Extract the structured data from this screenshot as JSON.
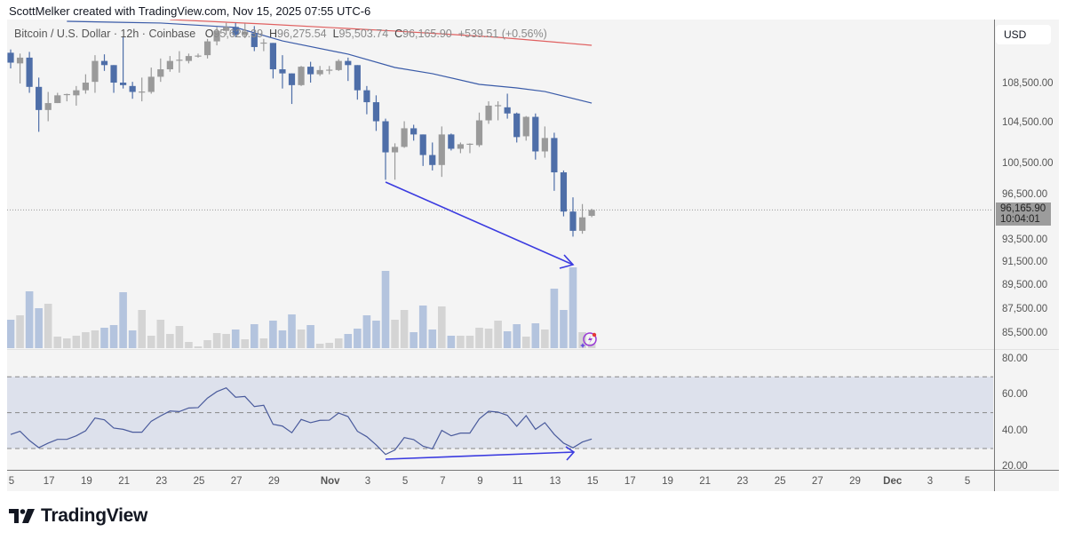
{
  "attribution": "ScottMelker created with TradingView.com, Nov 15, 2025 07:55 UTC-6",
  "legend": {
    "symbol": "Bitcoin / U.S. Dollar · 12h · Coinbase",
    "open_label": "O",
    "open": "95,626.39",
    "high_label": "H",
    "high": "96,275.54",
    "low_label": "L",
    "low": "95,503.74",
    "close_label": "C",
    "close": "96,165.90",
    "change": "+539.51 (+0.56%)"
  },
  "currency": "USD",
  "last_price": {
    "price": "96,165.90",
    "countdown": "10:04:01",
    "value": 96165.9
  },
  "price_axis": {
    "labels": [
      "108,500.00",
      "104,500.00",
      "100,500.00",
      "96,500.00",
      "93,500.00",
      "91,500.00",
      "89,500.00",
      "87,500.00",
      "85,500.00"
    ],
    "values": [
      108500,
      104500,
      100500,
      96500,
      93500,
      91500,
      89500,
      87500,
      85500
    ]
  },
  "rsi_axis": {
    "labels": [
      "80.00",
      "60.00",
      "40.00",
      "20.00"
    ],
    "values": [
      80,
      60,
      40,
      20
    ],
    "bands": [
      70,
      50,
      30
    ]
  },
  "time_axis": {
    "labels": [
      "5",
      "17",
      "19",
      "21",
      "23",
      "25",
      "27",
      "29",
      "Nov",
      "3",
      "5",
      "7",
      "9",
      "11",
      "13",
      "15",
      "17",
      "19",
      "21",
      "23",
      "25",
      "27",
      "29",
      "Dec",
      "3",
      "5"
    ],
    "days_since_oct15": [
      0,
      2,
      4,
      6,
      8,
      10,
      12,
      14,
      17,
      19,
      21,
      23,
      25,
      27,
      29,
      31,
      33,
      35,
      37,
      39,
      41,
      43,
      45,
      47,
      49,
      51
    ]
  },
  "colors": {
    "down": "#4e6ea8",
    "up": "#9a9a9a",
    "vol_down": "#b4c4de",
    "vol_up": "#d4d4d4",
    "ma_fast": "#3a5ba8",
    "ma_slow": "#e06060",
    "rsi": "#4a5b9c",
    "rsi_band": "#dde1ec",
    "drawing": "#3b3be0"
  },
  "logo": "TradingView",
  "chart_data": {
    "type": "candlestick",
    "interval": "12h",
    "candles_ohlc": [
      [
        111730,
        112080,
        110070,
        110680
      ],
      [
        110600,
        111640,
        108500,
        111210
      ],
      [
        111210,
        111820,
        107540,
        108150
      ],
      [
        108150,
        109110,
        103610,
        105790
      ],
      [
        105790,
        107630,
        104660,
        106490
      ],
      [
        106490,
        107540,
        106490,
        107280
      ],
      [
        107330,
        107450,
        106670,
        107410
      ],
      [
        107280,
        108240,
        106230,
        107800
      ],
      [
        107800,
        109460,
        107450,
        108590
      ],
      [
        108670,
        111470,
        107540,
        110860
      ],
      [
        110860,
        111560,
        109810,
        110420
      ],
      [
        110420,
        110420,
        107540,
        108590
      ],
      [
        108590,
        113390,
        107980,
        108330
      ],
      [
        108240,
        108670,
        106930,
        107630
      ],
      [
        107580,
        109110,
        106670,
        107670
      ],
      [
        107630,
        110160,
        107450,
        109200
      ],
      [
        109200,
        111120,
        108670,
        109980
      ],
      [
        109980,
        111380,
        109720,
        110860
      ],
      [
        110900,
        111900,
        109630,
        110990
      ],
      [
        110860,
        111640,
        110600,
        111380
      ],
      [
        111340,
        111640,
        111210,
        111430
      ],
      [
        111470,
        113210,
        111120,
        112950
      ],
      [
        112950,
        114520,
        112520,
        114090
      ],
      [
        114090,
        114960,
        113650,
        114520
      ],
      [
        114520,
        114960,
        113390,
        113650
      ],
      [
        113650,
        114900,
        113300,
        114000
      ],
      [
        113830,
        114610,
        111900,
        112340
      ],
      [
        112740,
        113210,
        111900,
        112820
      ],
      [
        112780,
        112780,
        109020,
        109980
      ],
      [
        109980,
        111470,
        107980,
        109550
      ],
      [
        109550,
        109550,
        106400,
        108330
      ],
      [
        108330,
        110330,
        108240,
        110250
      ],
      [
        110250,
        110770,
        108590,
        109460
      ],
      [
        109460,
        110330,
        109290,
        109900
      ],
      [
        109850,
        110330,
        109460,
        109940
      ],
      [
        109900,
        111030,
        109810,
        110860
      ],
      [
        110860,
        111210,
        108760,
        110420
      ],
      [
        110420,
        110420,
        106840,
        107800
      ],
      [
        107800,
        108240,
        105360,
        106580
      ],
      [
        106580,
        107280,
        103700,
        104660
      ],
      [
        104660,
        104920,
        98980,
        101600
      ],
      [
        101600,
        102480,
        98980,
        102130
      ],
      [
        102130,
        104660,
        102040,
        103960
      ],
      [
        103960,
        104310,
        102740,
        103350
      ],
      [
        103350,
        103350,
        100290,
        101340
      ],
      [
        101340,
        102560,
        99860,
        100380
      ],
      [
        100380,
        104140,
        99250,
        103350
      ],
      [
        103350,
        103440,
        101780,
        101950
      ],
      [
        101950,
        102560,
        101520,
        102390
      ],
      [
        102350,
        102480,
        101520,
        102440
      ],
      [
        102300,
        105530,
        102130,
        104750
      ],
      [
        104750,
        106670,
        104400,
        106230
      ],
      [
        106190,
        106670,
        104750,
        106280
      ],
      [
        106060,
        107450,
        104920,
        105440
      ],
      [
        105440,
        105530,
        102560,
        103090
      ],
      [
        103170,
        105180,
        102740,
        105100
      ],
      [
        105100,
        105440,
        100900,
        101690
      ],
      [
        101690,
        104140,
        101080,
        103000
      ],
      [
        103000,
        103520,
        97940,
        99680
      ],
      [
        99680,
        99860,
        95580,
        96020
      ],
      [
        96020,
        97330,
        93750,
        94270
      ],
      [
        94270,
        96710,
        94010,
        95490
      ],
      [
        95626.39,
        96275.54,
        95503.74,
        96165.9
      ]
    ],
    "volume_relative": [
      32,
      37,
      64,
      45,
      50,
      13,
      11,
      14,
      18,
      20,
      23,
      26,
      63,
      20,
      43,
      14,
      32,
      16,
      25,
      7,
      2,
      9,
      17,
      16,
      21,
      10,
      27,
      11,
      31,
      20,
      38,
      21,
      26,
      5,
      6,
      11,
      16,
      22,
      37,
      31,
      87,
      32,
      43,
      18,
      48,
      21,
      47,
      14,
      14,
      14,
      23,
      22,
      31,
      19,
      27,
      13,
      28,
      21,
      67,
      43,
      91,
      18,
      5
    ],
    "ma_fast": [
      [
        6,
        115130
      ],
      [
        16,
        114940
      ],
      [
        24,
        114460
      ],
      [
        29,
        113000
      ],
      [
        36,
        111580
      ],
      [
        41,
        110170
      ],
      [
        45,
        109520
      ],
      [
        50,
        108410
      ],
      [
        54,
        108040
      ],
      [
        57,
        107670
      ],
      [
        62,
        106490
      ]
    ],
    "ma_slow": [
      [
        17,
        115320
      ],
      [
        27,
        114840
      ],
      [
        41,
        114070
      ],
      [
        52,
        113390
      ],
      [
        62,
        112530
      ]
    ],
    "rsi": [
      37.8,
      39.6,
      34.5,
      30.5,
      33.0,
      35.1,
      35.1,
      37.1,
      39.9,
      47.0,
      46.0,
      41.4,
      40.7,
      39.1,
      39.1,
      45.2,
      48.2,
      50.9,
      50.6,
      52.6,
      52.8,
      58.1,
      61.7,
      63.8,
      58.6,
      59.0,
      53.4,
      54.1,
      43.5,
      42.5,
      38.8,
      46.2,
      44.4,
      45.7,
      45.8,
      49.8,
      47.8,
      39.6,
      36.6,
      32.0,
      26.7,
      29.2,
      36.1,
      35.0,
      31.3,
      29.8,
      40.1,
      37.1,
      38.6,
      38.6,
      46.5,
      50.8,
      50.3,
      48.5,
      42.4,
      48.3,
      40.7,
      44.4,
      37.9,
      33.0,
      30.4,
      33.6,
      35.3
    ],
    "ylim_price": [
      85500,
      115000
    ],
    "ylim_rsi": [
      20,
      80
    ]
  }
}
